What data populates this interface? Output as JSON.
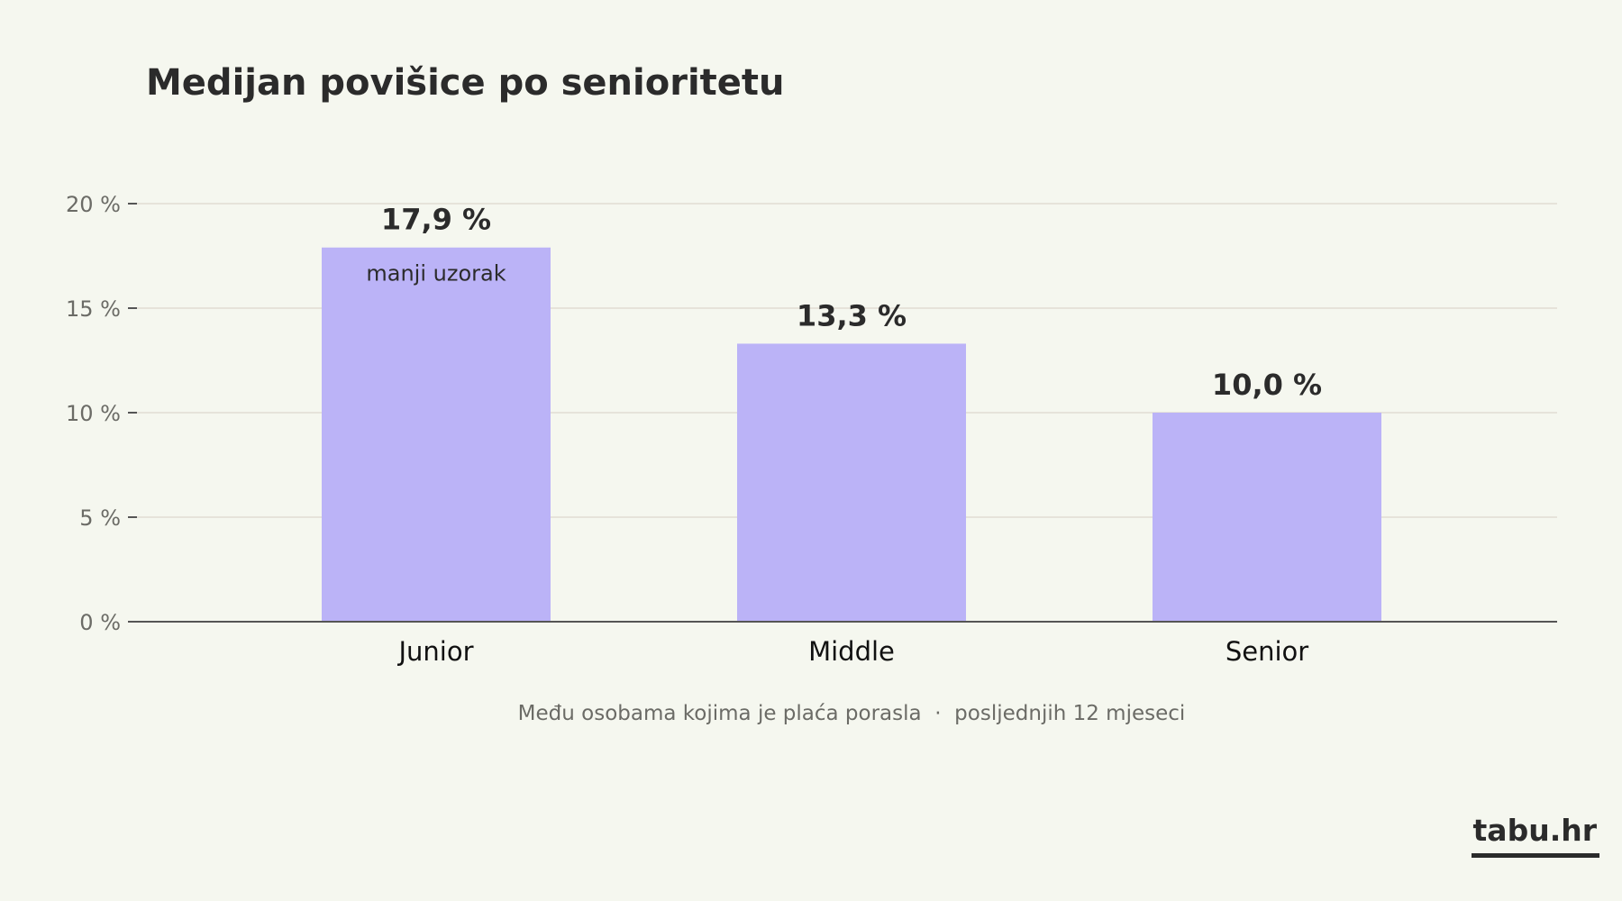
{
  "chart_data": {
    "type": "bar",
    "title": "Medijan povišice po senioritetu",
    "categories": [
      "Junior",
      "Middle",
      "Senior"
    ],
    "values": [
      17.9,
      13.3,
      10.0
    ],
    "value_labels": [
      "17,9 %",
      "13,3 %",
      "10,0 %"
    ],
    "annotations": [
      {
        "category": "Junior",
        "text": "manji uzorak"
      }
    ],
    "yticks": [
      0,
      5,
      10,
      15,
      20
    ],
    "ytick_labels": [
      "0 %",
      "5 %",
      "10 %",
      "15 %",
      "20 %"
    ],
    "ylim": [
      0,
      20
    ],
    "xlabel": "",
    "ylabel": "",
    "grid": true,
    "caption": "Među osobama kojima je plaća porasla  ·  posljednjih 12 mjeseci",
    "colors": {
      "bar": "#bbb3f7",
      "grid": "#e6e3da",
      "axis": "#555555",
      "background": "#f5f7ef"
    }
  },
  "brand": {
    "name": "tabu.hr"
  }
}
